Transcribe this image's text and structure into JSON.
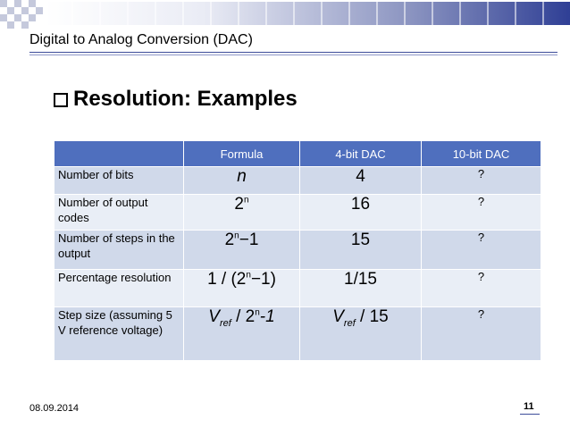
{
  "slide": {
    "title": "Digital to Analog Conversion (DAC)",
    "heading": "Resolution: Examples",
    "date": "08.09.2014",
    "page": "11"
  },
  "table": {
    "headers": [
      "",
      "Formula",
      "4-bit DAC",
      "10-bit DAC"
    ],
    "rows": [
      {
        "label": "Number of bits",
        "formula": "n",
        "bit4": "4",
        "bit10": "?"
      },
      {
        "label": "Number of output codes",
        "formula_base": "2",
        "formula_exp": "n",
        "bit4": "16",
        "bit10": "?"
      },
      {
        "label": "Number of steps in the output",
        "formula_base": "2",
        "formula_exp": "n",
        "formula_tail": "−1",
        "bit4": "15",
        "bit10": "?"
      },
      {
        "label": "Percentage resolution",
        "formula_pre": "1 / (2",
        "formula_exp": "n",
        "formula_tail": "−1)",
        "bit4": "1/15",
        "bit10": "?"
      },
      {
        "label": "Step size (assuming 5 V reference voltage)",
        "formula_v": "V",
        "formula_sub": "ref",
        "formula_mid": " / 2",
        "formula_exp": "n",
        "formula_tail": "-1",
        "bit4_v": "V",
        "bit4_sub": "ref",
        "bit4_tail": " / 15",
        "bit10": "?"
      }
    ]
  },
  "colors": {
    "header_bg": "#4f6fbe",
    "row_dark": "#d0d9ea",
    "row_light": "#e9eef6",
    "accent": "#2f3f95"
  }
}
